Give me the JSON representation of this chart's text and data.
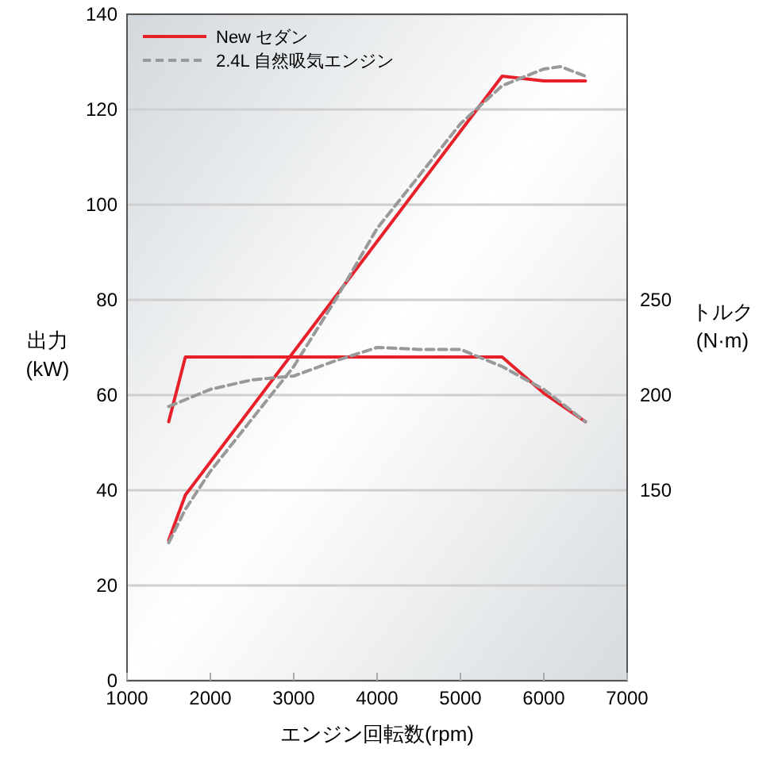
{
  "chart_data": {
    "type": "line",
    "xlabel": "エンジン回転数(rpm)",
    "ylabel": "出力 (kW)",
    "y2label": "トルク (N·m)",
    "xlim": [
      1000,
      7000
    ],
    "xticks": [
      1000,
      2000,
      3000,
      4000,
      5000,
      6000,
      7000
    ],
    "ylim": [
      0,
      140
    ],
    "yticks": [
      0,
      20,
      40,
      60,
      80,
      100,
      120,
      140
    ],
    "y2lim": [
      50,
      400
    ],
    "y2ticks": [
      150,
      200,
      250
    ],
    "grid": "y",
    "legend": "top left",
    "marker": "none",
    "series": [
      {
        "name": "New セダン",
        "color": "#e8202a",
        "line_style": "solid",
        "x": [
          1500,
          1700,
          5500,
          6000,
          6500
        ],
        "values": [
          29.5,
          39,
          127,
          126,
          126
        ]
      },
      {
        "name": "2.4L 自然吸気エンジン",
        "color": "#999999",
        "line_style": "dashed",
        "x": [
          1500,
          1700,
          2000,
          2500,
          3000,
          3500,
          4000,
          4500,
          5000,
          5500,
          6000,
          6200,
          6500
        ],
        "values": [
          29,
          36,
          44,
          55,
          66,
          80,
          95,
          106,
          117,
          125,
          128.5,
          129,
          127
        ]
      },
      {
        "color": "#e8202a",
        "line_style": "solid",
        "axis": "y2",
        "x": [
          1500,
          1700,
          5500,
          6000,
          6500
        ],
        "values": [
          186,
          220,
          220,
          201,
          186
        ]
      },
      {
        "color": "#999999",
        "line_style": "dashed",
        "axis": "y2",
        "x": [
          1500,
          2000,
          2500,
          3000,
          3500,
          4000,
          4500,
          5000,
          5500,
          6000,
          6500
        ],
        "values": [
          194,
          203,
          208,
          210,
          218,
          225,
          224,
          224,
          215,
          203,
          186
        ]
      }
    ]
  }
}
